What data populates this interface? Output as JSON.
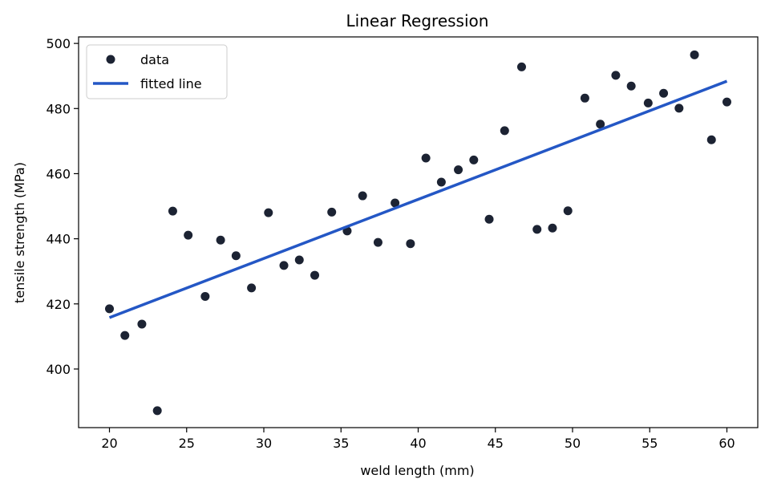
{
  "chart_data": {
    "type": "scatter",
    "title": "Linear Regression",
    "xlabel": "weld length (mm)",
    "ylabel": "tensile strength (MPa)",
    "xlim": [
      18,
      62
    ],
    "ylim": [
      382,
      502
    ],
    "xticks": [
      20,
      25,
      30,
      35,
      40,
      45,
      50,
      55,
      60
    ],
    "yticks": [
      400,
      420,
      440,
      460,
      480,
      500
    ],
    "grid": false,
    "legend_position": "top-left",
    "series": [
      {
        "name": "data",
        "kind": "scatter",
        "color": "#1c2333",
        "points": [
          [
            20.0,
            418.5
          ],
          [
            21.0,
            410.3
          ],
          [
            22.1,
            413.8
          ],
          [
            23.1,
            387.2
          ],
          [
            24.1,
            448.5
          ],
          [
            25.1,
            441.1
          ],
          [
            26.2,
            422.3
          ],
          [
            27.2,
            439.6
          ],
          [
            28.2,
            434.8
          ],
          [
            29.2,
            424.9
          ],
          [
            30.3,
            448.0
          ],
          [
            31.3,
            431.8
          ],
          [
            32.3,
            433.5
          ],
          [
            33.3,
            428.8
          ],
          [
            34.4,
            448.2
          ],
          [
            35.4,
            442.4
          ],
          [
            36.4,
            453.2
          ],
          [
            37.4,
            438.9
          ],
          [
            38.5,
            451.0
          ],
          [
            39.5,
            438.5
          ],
          [
            40.5,
            464.8
          ],
          [
            41.5,
            457.4
          ],
          [
            42.6,
            461.2
          ],
          [
            43.6,
            464.2
          ],
          [
            44.6,
            446.0
          ],
          [
            45.6,
            473.2
          ],
          [
            46.7,
            492.8
          ],
          [
            47.7,
            442.9
          ],
          [
            48.7,
            443.3
          ],
          [
            49.7,
            448.6
          ],
          [
            50.8,
            483.2
          ],
          [
            51.8,
            475.2
          ],
          [
            52.8,
            490.2
          ],
          [
            53.8,
            486.9
          ],
          [
            54.9,
            481.7
          ],
          [
            55.9,
            484.7
          ],
          [
            56.9,
            480.1
          ],
          [
            57.9,
            496.5
          ],
          [
            59.0,
            470.4
          ],
          [
            60.0,
            482.0
          ]
        ]
      },
      {
        "name": "fitted line",
        "kind": "line",
        "color": "#2457c5",
        "points": [
          [
            20,
            415.8
          ],
          [
            60,
            488.4
          ]
        ]
      }
    ]
  }
}
